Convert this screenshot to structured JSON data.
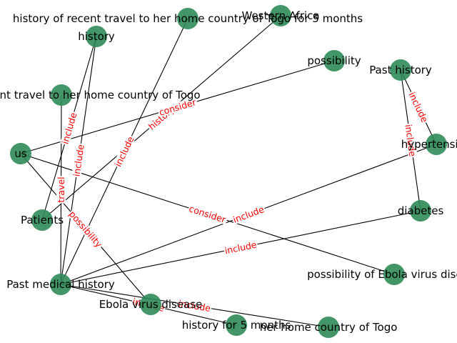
{
  "colors": {
    "node_fill": "#2e8b57",
    "edge_stroke": "#000000",
    "edge_label": "#ff0000",
    "background": "#ffffff"
  },
  "nodes": [
    {
      "id": "recent-travel",
      "label": "history of recent travel to her home country of Togo for 5 months"
    },
    {
      "id": "western-africa",
      "label": "Western Africa"
    },
    {
      "id": "history",
      "label": "history"
    },
    {
      "id": "possibility",
      "label": "possibility"
    },
    {
      "id": "past-history",
      "label": "Past history"
    },
    {
      "id": "travel-togo",
      "label": "history of recent travel to her home country of Togo"
    },
    {
      "id": "hypertension",
      "label": "hypertension"
    },
    {
      "id": "us",
      "label": "us"
    },
    {
      "id": "patients",
      "label": "Patients"
    },
    {
      "id": "diabetes",
      "label": "diabetes"
    },
    {
      "id": "possibility-ebola",
      "label": "possibility of Ebola virus disease"
    },
    {
      "id": "past-medical-history",
      "label": "Past medical history"
    },
    {
      "id": "ebola",
      "label": "Ebola virus disease"
    },
    {
      "id": "history-5-months",
      "label": "history for 5 months"
    },
    {
      "id": "home-country",
      "label": "her home country of Togo"
    }
  ],
  "edges": [
    {
      "from": "patients",
      "to": "history",
      "label": "include"
    },
    {
      "from": "patients",
      "to": "western-africa",
      "label": "history"
    },
    {
      "from": "us",
      "to": "possibility",
      "label": "consider"
    },
    {
      "from": "us",
      "to": "possibility-ebola",
      "label": "consider"
    },
    {
      "from": "us",
      "to": "ebola",
      "label": "possibility"
    },
    {
      "from": "past-medical-history",
      "to": "travel-togo",
      "label": "travel"
    },
    {
      "from": "past-medical-history",
      "to": "history",
      "label": "include"
    },
    {
      "from": "past-medical-history",
      "to": "recent-travel",
      "label": "include"
    },
    {
      "from": "past-medical-history",
      "to": "hypertension",
      "label": "include"
    },
    {
      "from": "past-medical-history",
      "to": "diabetes",
      "label": "include"
    },
    {
      "from": "past-medical-history",
      "to": "history-5-months",
      "label": "include"
    },
    {
      "from": "past-medical-history",
      "to": "home-country",
      "label": "include"
    },
    {
      "from": "past-history",
      "to": "hypertension",
      "label": "include"
    },
    {
      "from": "past-history",
      "to": "diabetes",
      "label": "include"
    }
  ]
}
